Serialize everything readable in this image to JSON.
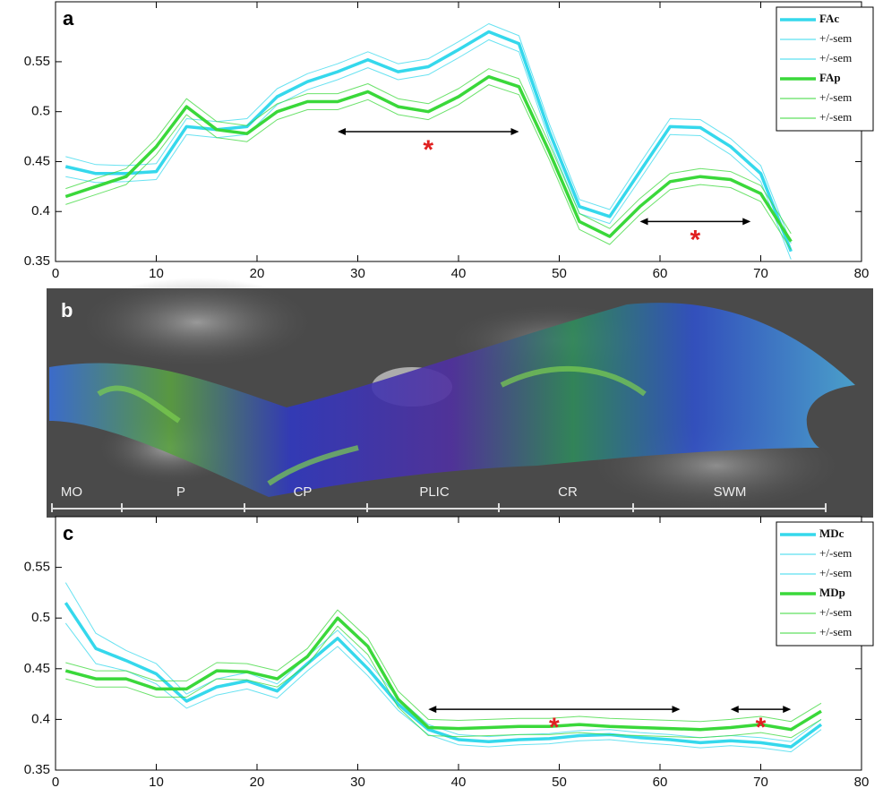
{
  "chart_data": [
    {
      "type": "line",
      "panel_label": "a",
      "x": [
        1,
        4,
        7,
        10,
        13,
        16,
        19,
        22,
        25,
        28,
        31,
        34,
        37,
        40,
        43,
        46,
        49,
        52,
        55,
        58,
        61,
        64,
        67,
        70,
        73
      ],
      "series": [
        {
          "name": "FAc",
          "color": "#35d8ec",
          "linewidth": 3.5,
          "values": [
            0.445,
            0.438,
            0.438,
            0.44,
            0.485,
            0.482,
            0.485,
            0.515,
            0.53,
            0.54,
            0.552,
            0.54,
            0.545,
            0.562,
            0.58,
            0.568,
            0.48,
            0.405,
            0.395,
            0.44,
            0.485,
            0.484,
            0.465,
            0.438,
            0.36
          ]
        },
        {
          "name": "+/-sem",
          "color": "#35d8ec",
          "linewidth": 1,
          "values": [
            0.455,
            0.447,
            0.446,
            0.448,
            0.493,
            0.49,
            0.493,
            0.523,
            0.538,
            0.548,
            0.56,
            0.548,
            0.553,
            0.57,
            0.588,
            0.576,
            0.488,
            0.412,
            0.402,
            0.448,
            0.493,
            0.492,
            0.473,
            0.446,
            0.368
          ]
        },
        {
          "name": "+/-sem",
          "color": "#35d8ec",
          "linewidth": 1,
          "values": [
            0.435,
            0.429,
            0.43,
            0.432,
            0.477,
            0.474,
            0.477,
            0.507,
            0.522,
            0.532,
            0.544,
            0.532,
            0.537,
            0.554,
            0.572,
            0.56,
            0.472,
            0.398,
            0.388,
            0.432,
            0.477,
            0.476,
            0.457,
            0.43,
            0.352
          ]
        },
        {
          "name": "FAp",
          "color": "#3ad83a",
          "linewidth": 3.5,
          "values": [
            0.415,
            0.425,
            0.435,
            0.465,
            0.505,
            0.482,
            0.478,
            0.5,
            0.51,
            0.51,
            0.52,
            0.505,
            0.5,
            0.515,
            0.535,
            0.525,
            0.46,
            0.39,
            0.375,
            0.405,
            0.43,
            0.435,
            0.432,
            0.418,
            0.37
          ]
        },
        {
          "name": "+/-sem",
          "color": "#3ad83a",
          "linewidth": 1,
          "values": [
            0.423,
            0.433,
            0.443,
            0.473,
            0.513,
            0.49,
            0.486,
            0.508,
            0.518,
            0.518,
            0.528,
            0.513,
            0.508,
            0.523,
            0.543,
            0.533,
            0.468,
            0.398,
            0.383,
            0.413,
            0.438,
            0.443,
            0.44,
            0.426,
            0.378
          ]
        },
        {
          "name": "+/-sem",
          "color": "#3ad83a",
          "linewidth": 1,
          "values": [
            0.407,
            0.417,
            0.427,
            0.457,
            0.497,
            0.474,
            0.47,
            0.492,
            0.502,
            0.502,
            0.512,
            0.497,
            0.492,
            0.507,
            0.527,
            0.517,
            0.452,
            0.382,
            0.367,
            0.397,
            0.422,
            0.427,
            0.424,
            0.41,
            0.362
          ]
        }
      ],
      "annotations": [
        {
          "text": "*",
          "x": [
            28,
            46
          ],
          "y": 0.48
        },
        {
          "text": "*",
          "x": [
            58,
            69
          ],
          "y": 0.39
        }
      ],
      "xlim": [
        0,
        80
      ],
      "xticks": [
        0,
        10,
        20,
        30,
        40,
        50,
        60,
        70,
        80
      ],
      "ylim": [
        0.35,
        0.61
      ],
      "yticks": [
        0.35,
        0.4,
        0.45,
        0.5,
        0.55
      ],
      "legend": "upper right"
    },
    {
      "type": "line",
      "panel_label": "c",
      "x": [
        1,
        4,
        7,
        10,
        13,
        16,
        19,
        22,
        25,
        28,
        31,
        34,
        37,
        40,
        43,
        46,
        49,
        52,
        55,
        58,
        61,
        64,
        67,
        70,
        73,
        76
      ],
      "series": [
        {
          "name": "MDc",
          "color": "#35d8ec",
          "linewidth": 3.5,
          "values": [
            0.515,
            0.47,
            0.458,
            0.445,
            0.418,
            0.432,
            0.438,
            0.428,
            0.455,
            0.48,
            0.45,
            0.415,
            0.39,
            0.38,
            0.378,
            0.38,
            0.381,
            0.384,
            0.385,
            0.382,
            0.38,
            0.377,
            0.379,
            0.377,
            0.373,
            0.395
          ]
        },
        {
          "name": "+/-sem",
          "color": "#35d8ec",
          "linewidth": 1,
          "values": [
            0.535,
            0.485,
            0.468,
            0.455,
            0.425,
            0.44,
            0.446,
            0.435,
            0.462,
            0.488,
            0.457,
            0.421,
            0.395,
            0.385,
            0.383,
            0.385,
            0.386,
            0.389,
            0.39,
            0.387,
            0.385,
            0.382,
            0.384,
            0.382,
            0.378,
            0.4
          ]
        },
        {
          "name": "+/-sem",
          "color": "#35d8ec",
          "linewidth": 1,
          "values": [
            0.495,
            0.455,
            0.448,
            0.435,
            0.411,
            0.424,
            0.43,
            0.421,
            0.448,
            0.472,
            0.443,
            0.409,
            0.385,
            0.375,
            0.373,
            0.375,
            0.376,
            0.379,
            0.38,
            0.377,
            0.375,
            0.372,
            0.374,
            0.372,
            0.368,
            0.39
          ]
        },
        {
          "name": "MDp",
          "color": "#3ad83a",
          "linewidth": 3.5,
          "values": [
            0.448,
            0.44,
            0.44,
            0.43,
            0.43,
            0.448,
            0.447,
            0.44,
            0.462,
            0.5,
            0.472,
            0.42,
            0.392,
            0.391,
            0.392,
            0.393,
            0.393,
            0.395,
            0.393,
            0.392,
            0.391,
            0.39,
            0.392,
            0.395,
            0.39,
            0.408
          ]
        },
        {
          "name": "+/-sem",
          "color": "#3ad83a",
          "linewidth": 1,
          "values": [
            0.456,
            0.448,
            0.448,
            0.438,
            0.438,
            0.456,
            0.455,
            0.448,
            0.47,
            0.508,
            0.48,
            0.428,
            0.4,
            0.399,
            0.4,
            0.401,
            0.401,
            0.403,
            0.401,
            0.4,
            0.399,
            0.398,
            0.4,
            0.403,
            0.398,
            0.416
          ]
        },
        {
          "name": "+/-sem",
          "color": "#3ad83a",
          "linewidth": 1,
          "values": [
            0.44,
            0.432,
            0.432,
            0.422,
            0.422,
            0.44,
            0.439,
            0.432,
            0.454,
            0.492,
            0.464,
            0.412,
            0.384,
            0.383,
            0.384,
            0.385,
            0.385,
            0.387,
            0.385,
            0.384,
            0.383,
            0.382,
            0.384,
            0.387,
            0.382,
            0.4
          ]
        }
      ],
      "annotations": [
        {
          "text": "*",
          "x": [
            37,
            62
          ],
          "y": 0.41
        },
        {
          "text": "*",
          "x": [
            67,
            73
          ],
          "y": 0.41
        }
      ],
      "xlim": [
        0,
        80
      ],
      "xticks": [
        0,
        10,
        20,
        30,
        40,
        50,
        60,
        70,
        80
      ],
      "ylim": [
        0.35,
        0.6
      ],
      "yticks": [
        0.35,
        0.4,
        0.45,
        0.5,
        0.55
      ],
      "legend": "upper right"
    }
  ],
  "image_panel": {
    "panel_label": "b",
    "regions": [
      "MO",
      "P",
      "CP",
      "PLIC",
      "CR",
      "SWM"
    ]
  }
}
